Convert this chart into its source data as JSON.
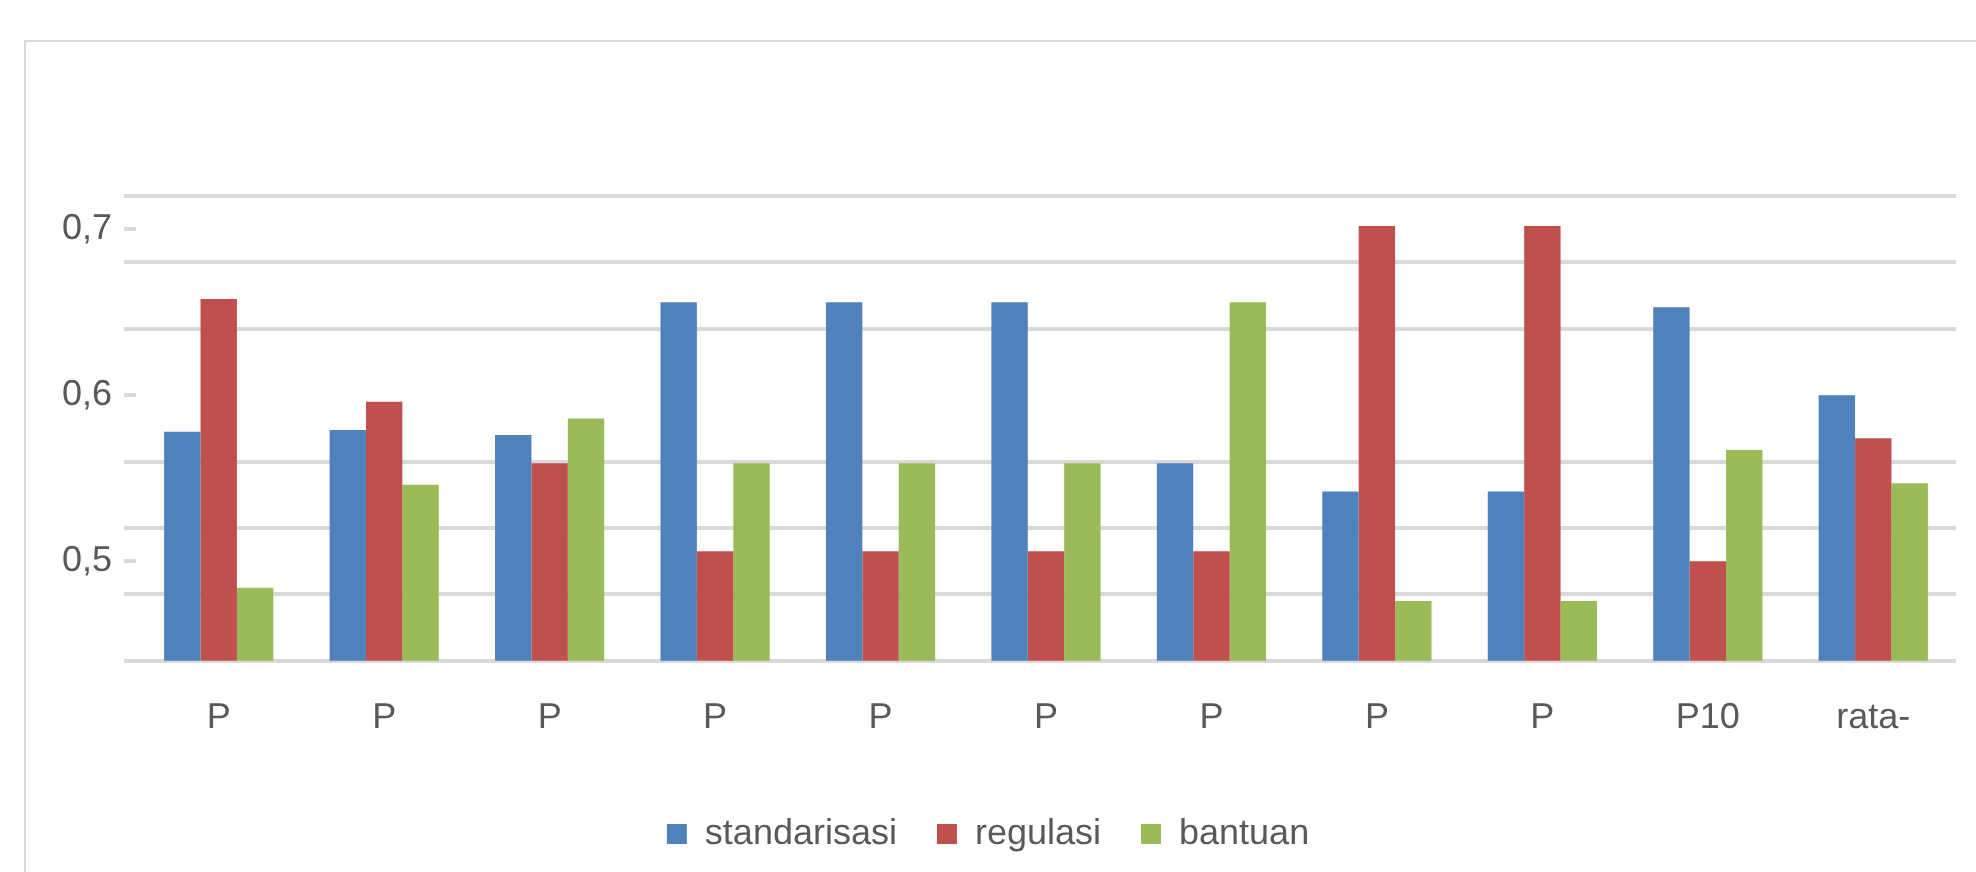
{
  "chart_data": {
    "type": "bar",
    "categories": [
      "P",
      "P",
      "P",
      "P",
      "P",
      "P",
      "P",
      "P",
      "P",
      "P10",
      "rata-"
    ],
    "series": [
      {
        "name": "standarisasi",
        "color": "#4f81bd",
        "values": [
          0.578,
          0.579,
          0.576,
          0.656,
          0.656,
          0.656,
          0.559,
          0.542,
          0.542,
          0.653,
          0.6
        ]
      },
      {
        "name": "regulasi",
        "color": "#c0504d",
        "values": [
          0.658,
          0.596,
          0.559,
          0.506,
          0.506,
          0.506,
          0.506,
          0.702,
          0.702,
          0.5,
          0.574
        ]
      },
      {
        "name": "bantuan",
        "color": "#9bbb59",
        "values": [
          0.484,
          0.546,
          0.586,
          0.559,
          0.559,
          0.559,
          0.656,
          0.476,
          0.476,
          0.567,
          0.547
        ]
      }
    ],
    "ylim": [
      0.44,
      0.72
    ],
    "yticks": [
      {
        "value": 0.44,
        "label": null
      },
      {
        "value": 0.48,
        "label": null
      },
      {
        "value": 0.5,
        "label": "0,5"
      },
      {
        "value": 0.52,
        "label": null
      },
      {
        "value": 0.56,
        "label": null
      },
      {
        "value": 0.6,
        "label": "0,6"
      },
      {
        "value": 0.64,
        "label": null
      },
      {
        "value": 0.68,
        "label": null
      },
      {
        "value": 0.7,
        "label": "0,7"
      },
      {
        "value": 0.72,
        "label": null
      }
    ],
    "grid": "y",
    "legend": "bottom"
  }
}
